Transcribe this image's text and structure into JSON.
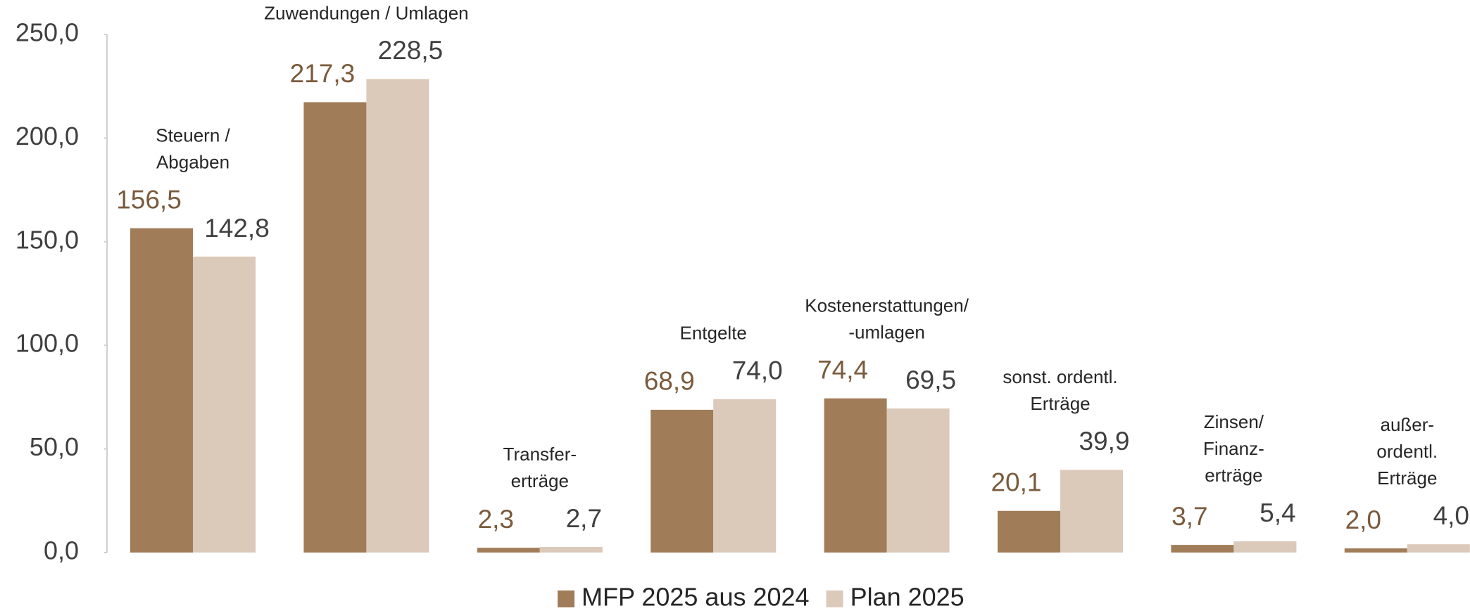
{
  "chart_data": {
    "type": "bar",
    "categories": [
      [
        "Steuern /",
        "Abgaben"
      ],
      [
        "Zuwendungen / Umlagen"
      ],
      [
        "Transfer-",
        "erträge"
      ],
      [
        "Entgelte"
      ],
      [
        "Kostenerstattungen/",
        "-umlagen"
      ],
      [
        "sonst. ordentl.",
        "Erträge"
      ],
      [
        "Zinsen/",
        "Finanz-",
        "erträge"
      ],
      [
        "außer-",
        "ordentl.",
        "Erträge"
      ]
    ],
    "series": [
      {
        "name": "MFP 2025 aus 2024",
        "color": "#a17c58",
        "label_color": "#7a5a3c",
        "values": [
          156.5,
          217.3,
          2.3,
          68.9,
          74.4,
          20.1,
          3.7,
          2.0
        ],
        "value_labels": [
          "156,5",
          "217,3",
          "2,3",
          "68,9",
          "74,4",
          "20,1",
          "3,7",
          "2,0"
        ]
      },
      {
        "name": "Plan 2025",
        "color": "#dbc9ba",
        "label_color": "#404040",
        "values": [
          142.8,
          228.5,
          2.7,
          74.0,
          69.5,
          39.9,
          5.4,
          4.0
        ],
        "value_labels": [
          "142,8",
          "228,5",
          "2,7",
          "74,0",
          "69,5",
          "39,9",
          "5,4",
          "4,0"
        ]
      }
    ],
    "ylim": [
      0,
      250
    ],
    "yticks": [
      {
        "value": 0,
        "label": "0,0"
      },
      {
        "value": 50,
        "label": "50,0"
      },
      {
        "value": 100,
        "label": "100,0"
      },
      {
        "value": 150,
        "label": "150,0"
      },
      {
        "value": 200,
        "label": "200,0"
      },
      {
        "value": 250,
        "label": "250,0"
      }
    ],
    "legend": "bottom"
  }
}
